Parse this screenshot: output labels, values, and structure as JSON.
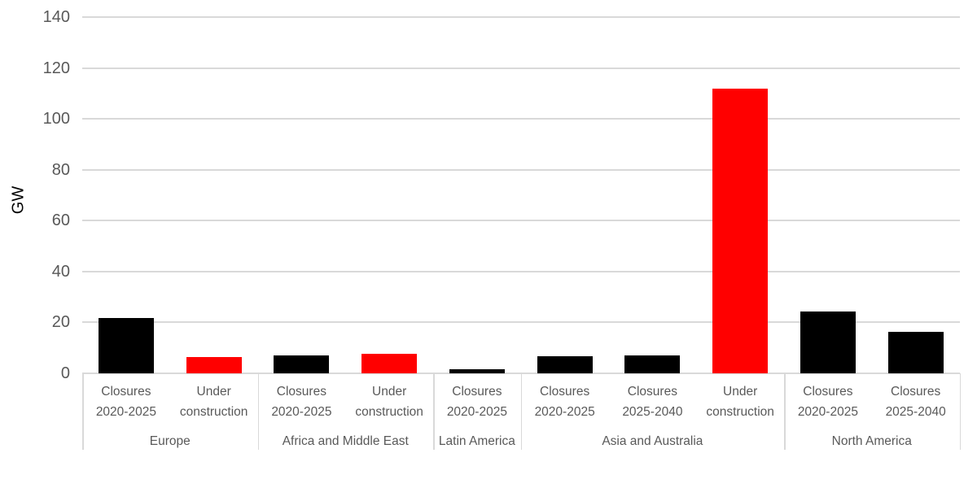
{
  "chart_data": {
    "type": "bar",
    "title": "",
    "ylabel": "GW",
    "xlabel": "",
    "ylim": [
      0,
      140
    ],
    "yticks": [
      0,
      20,
      40,
      60,
      80,
      100,
      120,
      140
    ],
    "grid": true,
    "legend": "none",
    "colors": {
      "closures_bar": "#000000",
      "under_construction_bar": "#FF0000",
      "axis_text": "#595959",
      "gridline": "#D9D9D9",
      "divider": "#D9D9D9",
      "background": "#FFFFFF"
    },
    "groups": [
      {
        "label": "Europe",
        "bars": [
          {
            "label": "Closures 2020-2025",
            "value": 21.5,
            "color": "#000000"
          },
          {
            "label": "Under construction",
            "value": 6.4,
            "color": "#FF0000"
          }
        ]
      },
      {
        "label": "Africa and Middle East",
        "bars": [
          {
            "label": "Closures 2020-2025",
            "value": 7.0,
            "color": "#000000"
          },
          {
            "label": "Under construction",
            "value": 7.6,
            "color": "#FF0000"
          }
        ]
      },
      {
        "label": "Latin America",
        "bars": [
          {
            "label": "Closures 2020-2025",
            "value": 1.5,
            "color": "#000000"
          }
        ]
      },
      {
        "label": "Asia and Australia",
        "bars": [
          {
            "label": "Closures 2020-2025",
            "value": 6.7,
            "color": "#000000"
          },
          {
            "label": "Closures 2025-2040",
            "value": 7.0,
            "color": "#000000"
          },
          {
            "label": "Under construction",
            "value": 112,
            "color": "#FF0000"
          }
        ]
      },
      {
        "label": "North America",
        "bars": [
          {
            "label": "Closures 2020-2025",
            "value": 24.3,
            "color": "#000000"
          },
          {
            "label": "Closures 2025-2040",
            "value": 16.3,
            "color": "#000000"
          }
        ]
      }
    ]
  }
}
